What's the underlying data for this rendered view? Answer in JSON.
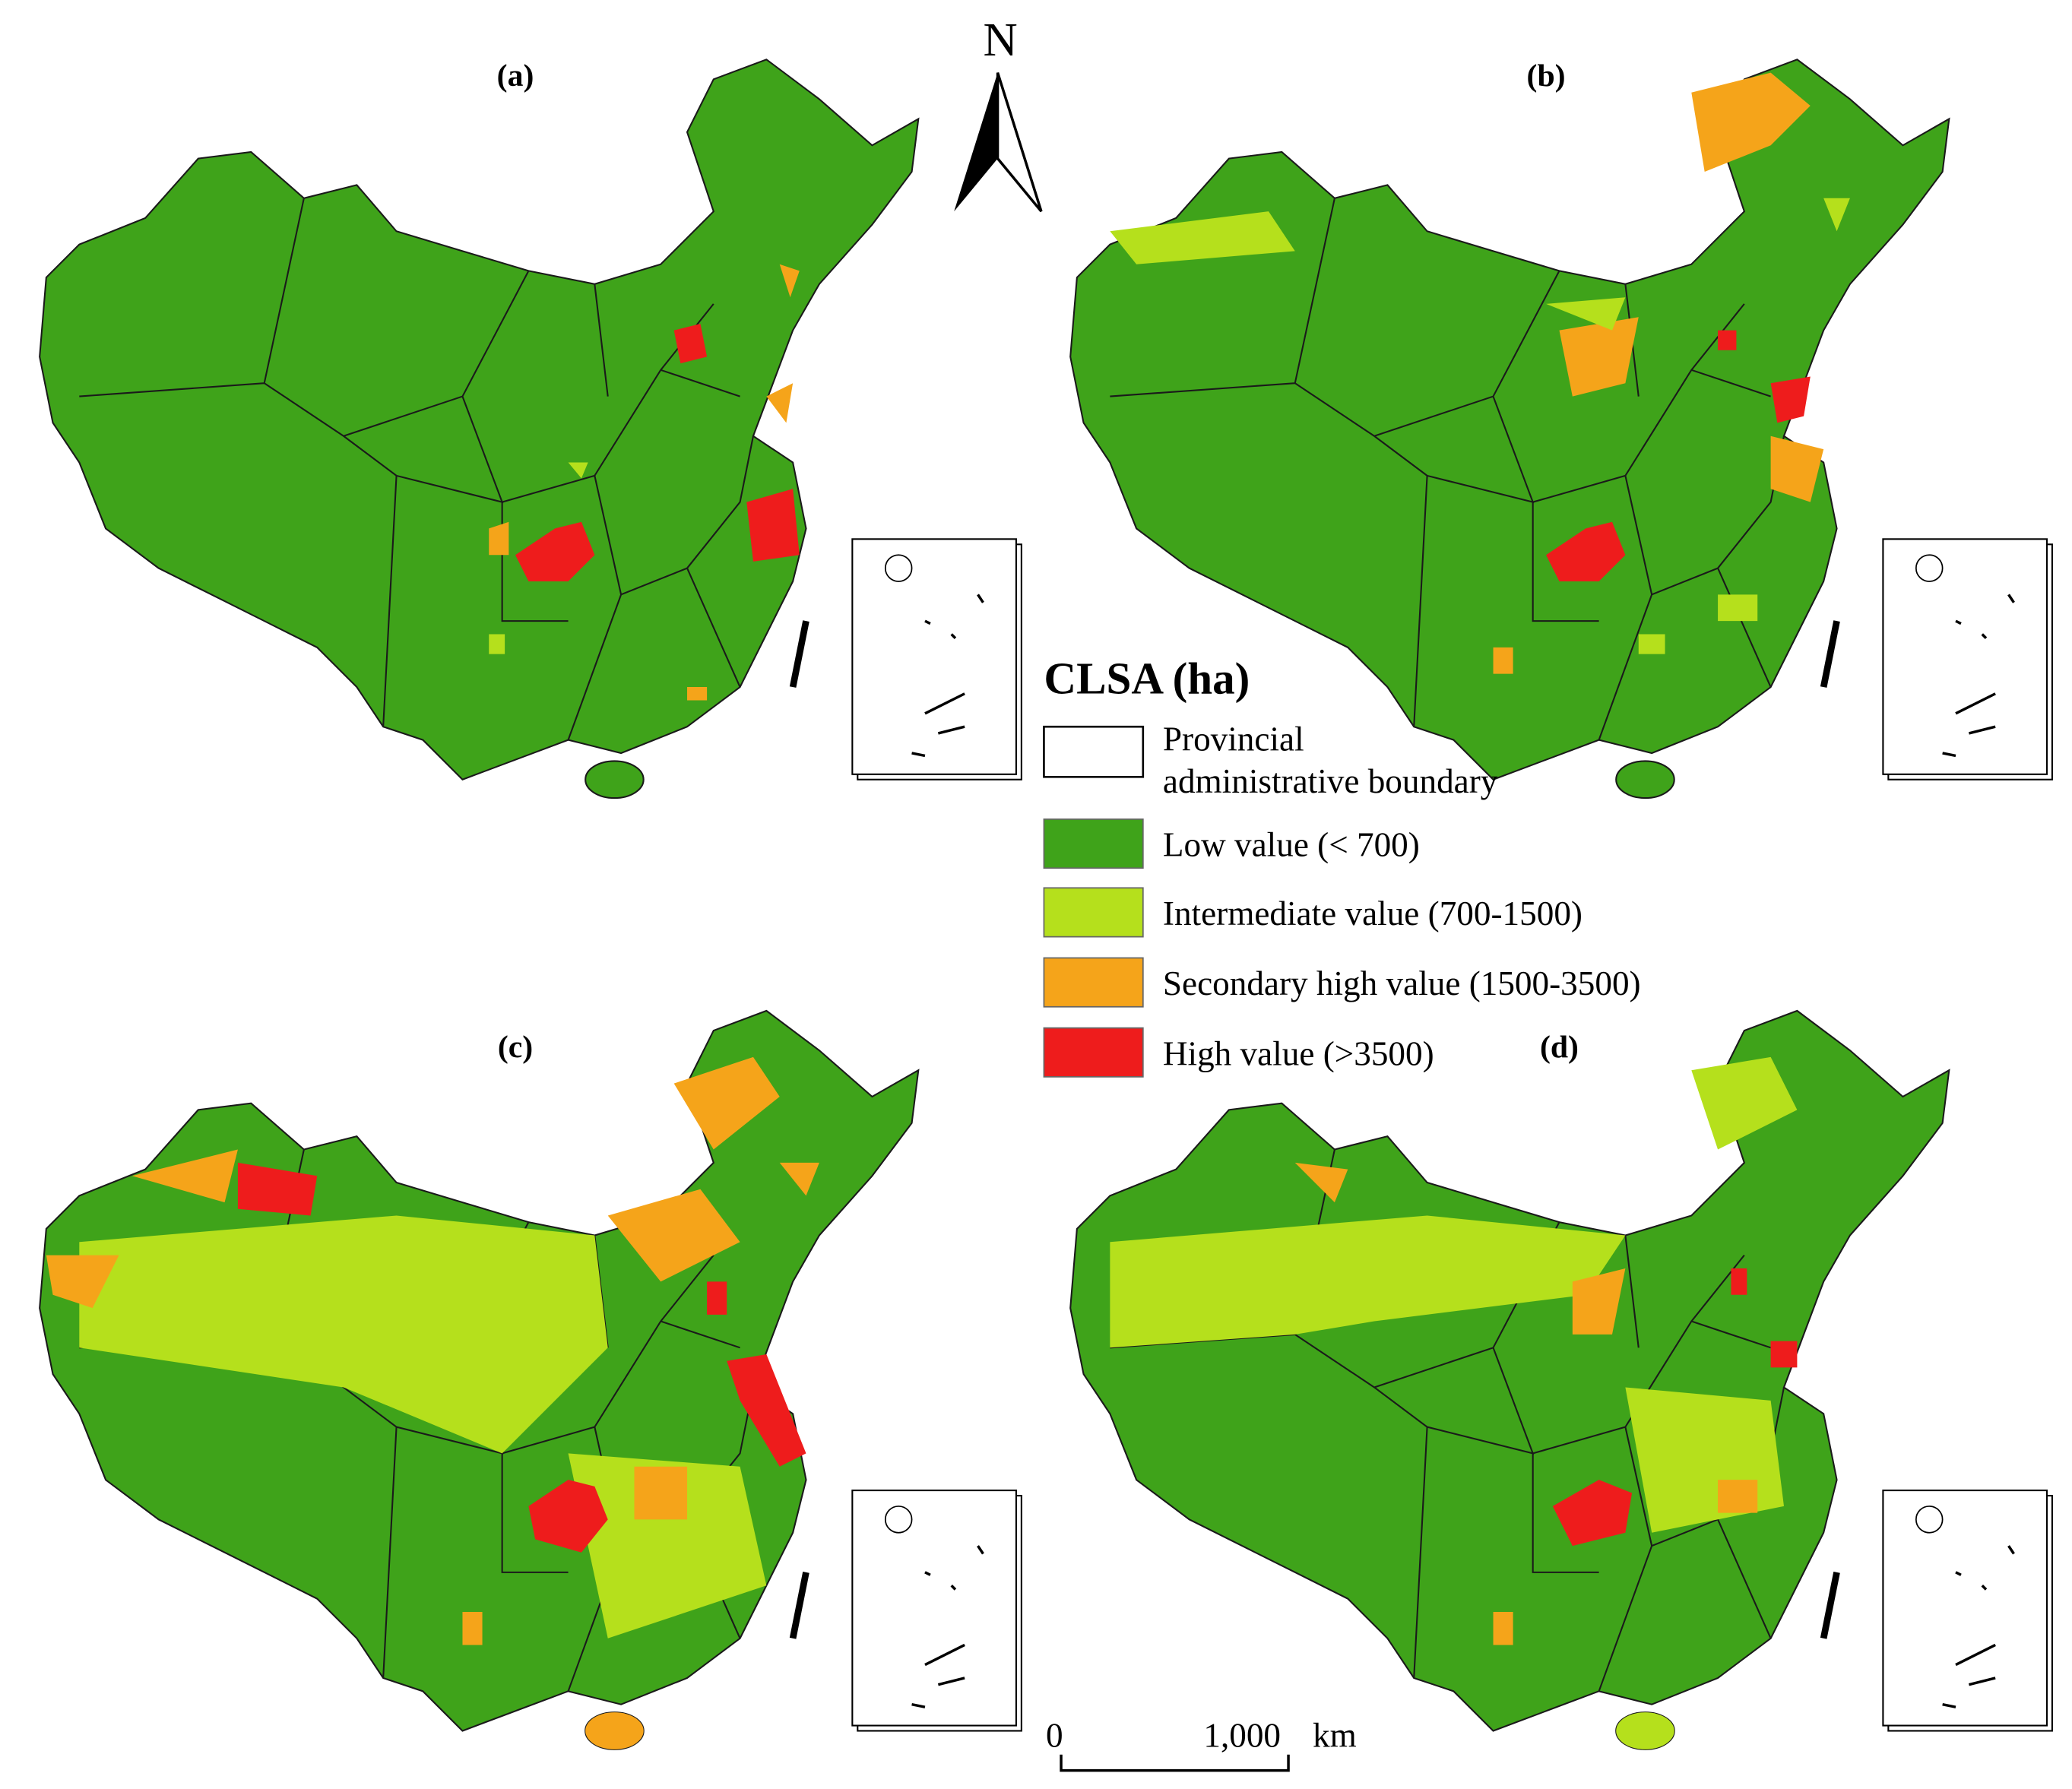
{
  "panels": [
    {
      "label": "(a)"
    },
    {
      "label": "(b)"
    },
    {
      "label": "(c)"
    },
    {
      "label": "(d)"
    }
  ],
  "north": "N",
  "legend": {
    "title": "CLSA (ha)",
    "items": [
      {
        "label": "Provincial administrative boundary"
      },
      {
        "label": "Low value (< 700)"
      },
      {
        "label": "Intermediate value (700-1500)"
      },
      {
        "label": "Secondary high value (1500-3500)"
      },
      {
        "label": "High value (>3500)"
      }
    ]
  },
  "scale_bar": {
    "labels": [
      "0",
      "1,000"
    ],
    "unit": "km"
  }
}
